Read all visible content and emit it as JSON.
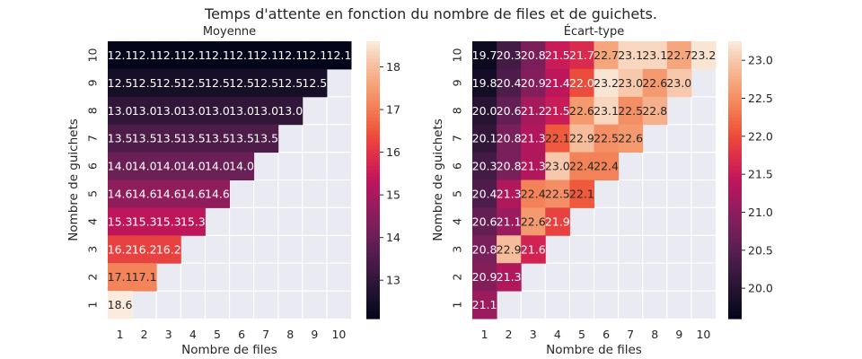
{
  "figure": {
    "title": "Temps d'attente en fonction du nombre de files et de guichets."
  },
  "chart_data": [
    {
      "type": "heatmap",
      "title": "Moyenne",
      "xlabel": "Nombre de files",
      "ylabel": "Nombre de guichets",
      "x_ticks": [
        "1",
        "2",
        "3",
        "4",
        "5",
        "6",
        "7",
        "8",
        "9",
        "10"
      ],
      "y_ticks": [
        "10",
        "9",
        "8",
        "7",
        "6",
        "5",
        "4",
        "3",
        "2",
        "1"
      ],
      "colormap": "rocket",
      "vmin": 12.1,
      "vmax": 18.6,
      "colorbar_ticks": [
        13,
        14,
        15,
        16,
        17,
        18
      ],
      "rows": [
        {
          "guichets": 10,
          "values": [
            12.1,
            12.1,
            12.1,
            12.1,
            12.1,
            12.1,
            12.1,
            12.1,
            12.1,
            12.1
          ]
        },
        {
          "guichets": 9,
          "values": [
            12.5,
            12.5,
            12.5,
            12.5,
            12.5,
            12.5,
            12.5,
            12.5,
            12.5
          ]
        },
        {
          "guichets": 8,
          "values": [
            13.0,
            13.0,
            13.0,
            13.0,
            13.0,
            13.0,
            13.0,
            13.0
          ]
        },
        {
          "guichets": 7,
          "values": [
            13.5,
            13.5,
            13.5,
            13.5,
            13.5,
            13.5,
            13.5
          ]
        },
        {
          "guichets": 6,
          "values": [
            14.0,
            14.0,
            14.0,
            14.0,
            14.0,
            14.0
          ]
        },
        {
          "guichets": 5,
          "values": [
            14.6,
            14.6,
            14.6,
            14.6,
            14.6
          ]
        },
        {
          "guichets": 4,
          "values": [
            15.3,
            15.3,
            15.3,
            15.3
          ]
        },
        {
          "guichets": 3,
          "values": [
            16.2,
            16.2,
            16.2
          ]
        },
        {
          "guichets": 2,
          "values": [
            17.1,
            17.1
          ]
        },
        {
          "guichets": 1,
          "values": [
            18.6
          ]
        }
      ]
    },
    {
      "type": "heatmap",
      "title": "Écart-type",
      "xlabel": "Nombre de files",
      "ylabel": "Nombre de guichets",
      "x_ticks": [
        "1",
        "2",
        "3",
        "4",
        "5",
        "6",
        "7",
        "8",
        "9",
        "10"
      ],
      "y_ticks": [
        "10",
        "9",
        "8",
        "7",
        "6",
        "5",
        "4",
        "3",
        "2",
        "1"
      ],
      "colormap": "rocket",
      "vmin": 19.6,
      "vmax": 23.25,
      "colorbar_ticks": [
        20.0,
        20.5,
        21.0,
        21.5,
        22.0,
        22.5,
        23.0
      ],
      "rows": [
        {
          "guichets": 10,
          "values": [
            19.7,
            20.3,
            20.8,
            21.5,
            21.7,
            22.7,
            23.1,
            23.1,
            22.7,
            23.2
          ]
        },
        {
          "guichets": 9,
          "values": [
            19.8,
            20.4,
            20.9,
            21.4,
            22.0,
            23.2,
            23.0,
            22.6,
            23.0
          ]
        },
        {
          "guichets": 8,
          "values": [
            20.0,
            20.6,
            21.2,
            21.5,
            22.6,
            23.1,
            22.5,
            22.8
          ]
        },
        {
          "guichets": 7,
          "values": [
            20.1,
            20.8,
            21.3,
            22.1,
            22.9,
            22.5,
            22.6
          ]
        },
        {
          "guichets": 6,
          "values": [
            20.3,
            20.8,
            21.3,
            23.0,
            22.4,
            22.4
          ]
        },
        {
          "guichets": 5,
          "values": [
            20.4,
            21.3,
            22.4,
            22.5,
            22.1
          ]
        },
        {
          "guichets": 4,
          "values": [
            20.6,
            21.1,
            22.6,
            21.9
          ]
        },
        {
          "guichets": 3,
          "values": [
            20.8,
            22.9,
            21.6
          ]
        },
        {
          "guichets": 2,
          "values": [
            20.9,
            21.3
          ]
        },
        {
          "guichets": 1,
          "values": [
            21.1
          ]
        }
      ]
    }
  ]
}
